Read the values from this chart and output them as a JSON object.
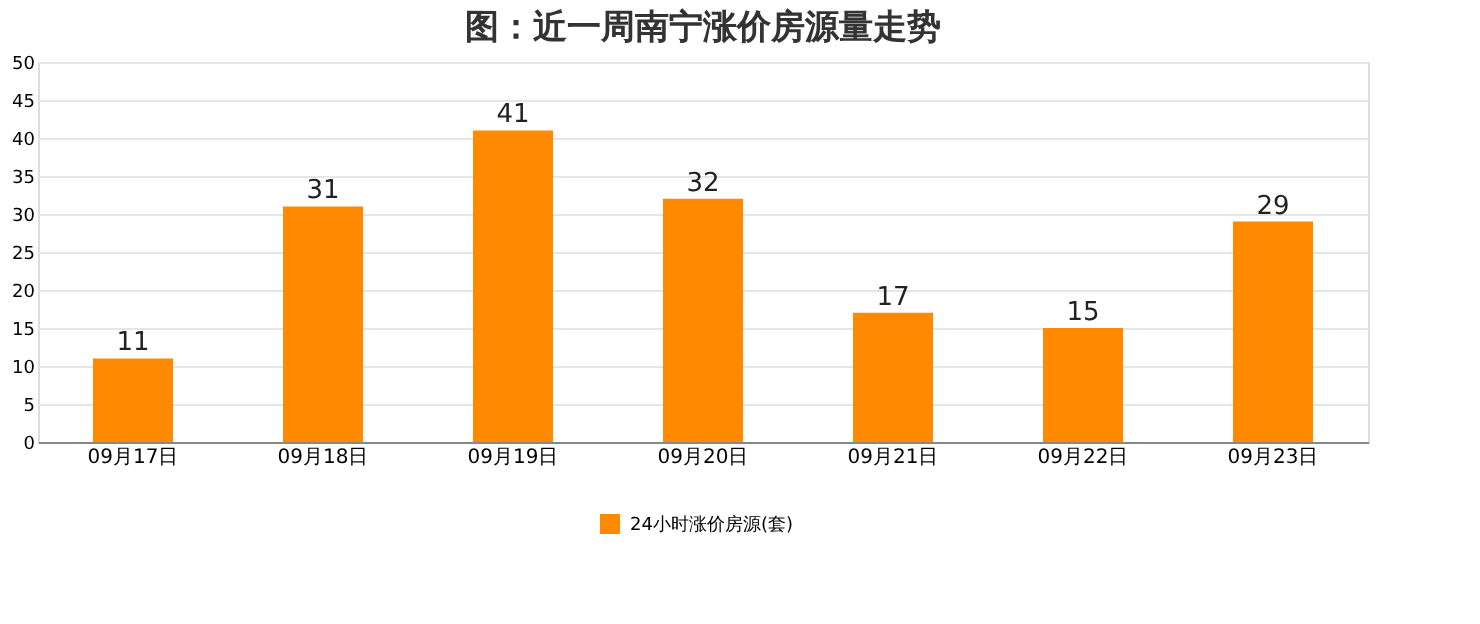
{
  "chart_data": {
    "type": "bar",
    "title": "图：近一周南宁涨价房源量走势",
    "categories": [
      "09月17日",
      "09月18日",
      "09月19日",
      "09月20日",
      "09月21日",
      "09月22日",
      "09月23日"
    ],
    "series": [
      {
        "name": "24小时涨价房源(套)",
        "color": "#ff8a00",
        "values": [
          11,
          31,
          41,
          32,
          17,
          15,
          29
        ]
      }
    ],
    "ylim": [
      0,
      50
    ],
    "yticks": [
      0,
      5,
      10,
      15,
      20,
      25,
      30,
      35,
      40,
      45,
      50
    ],
    "grid": "y",
    "legend": "bottom",
    "data_labels": true
  }
}
